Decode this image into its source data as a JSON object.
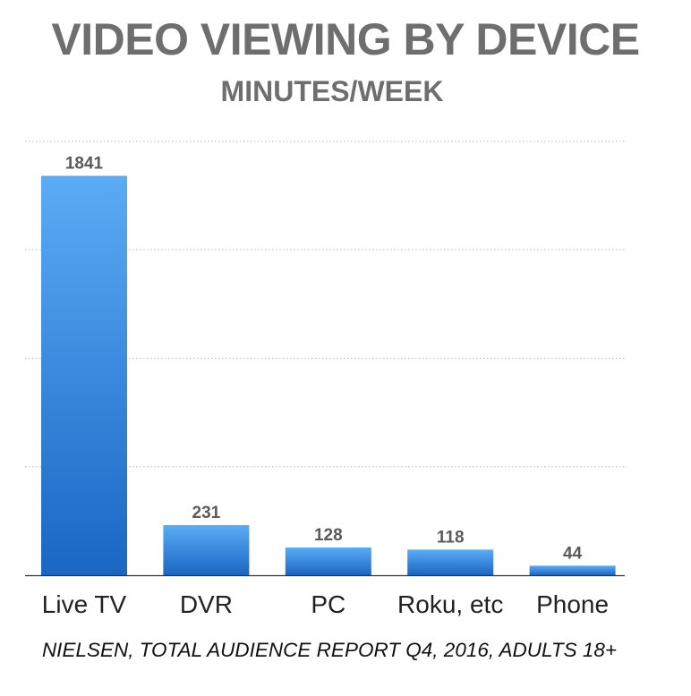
{
  "chart_data": {
    "type": "bar",
    "title": "VIDEO VIEWING BY DEVICE",
    "subtitle": "MINUTES/WEEK",
    "categories": [
      "Live TV",
      "DVR",
      "PC",
      "Roku, etc",
      "Phone"
    ],
    "values": [
      1841,
      231,
      128,
      118,
      44
    ],
    "data_labels": [
      "1841",
      "231",
      "128",
      "118",
      "44"
    ],
    "xlabel": "",
    "ylabel": "",
    "ylim": [
      0,
      2000
    ],
    "gridlines": [
      500,
      1000,
      1500,
      2000
    ],
    "grid": true,
    "source": "NIELSEN, TOTAL AUDIENCE REPORT Q4, 2016, ADULTS 18+"
  },
  "colors": {
    "bar_top": "#5aacf5",
    "bar_bottom": "#1a66c4",
    "grid": "#b8b8b8",
    "axis": "#333333"
  }
}
